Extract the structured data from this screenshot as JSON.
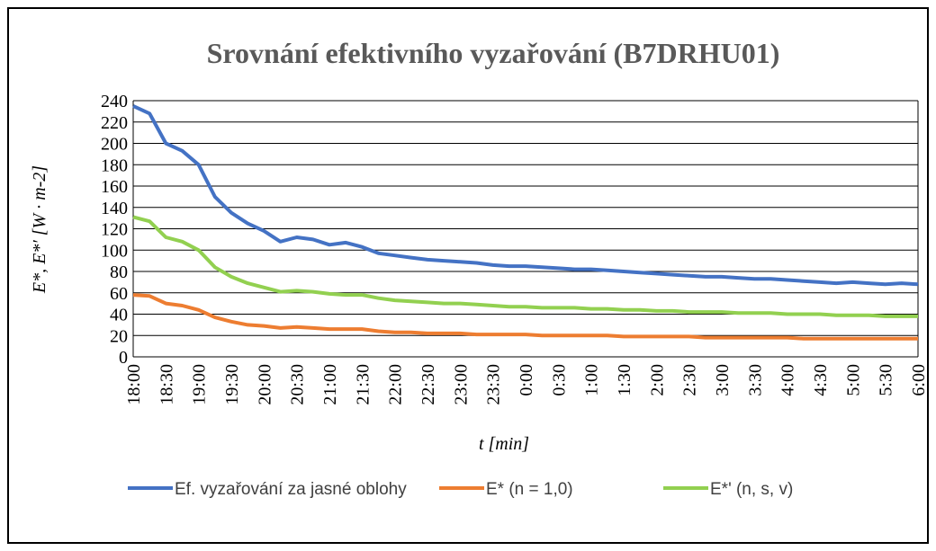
{
  "chart_data": {
    "type": "line",
    "title": "Srovnání efektivního vyzařování (B7DRHU01)",
    "x_label": "t [min]",
    "y_label": "E*, E*′ [W · m-2]",
    "categories": [
      "18:00",
      null,
      "18:30",
      null,
      "19:00",
      null,
      "19:30",
      null,
      "20:00",
      null,
      "20:30",
      null,
      "21:00",
      null,
      "21:30",
      null,
      "22:00",
      null,
      "22:30",
      null,
      "23:00",
      null,
      "23:30",
      null,
      "0:00",
      null,
      "0:30",
      null,
      "1:00",
      null,
      "1:30",
      null,
      "2:00",
      null,
      "2:30",
      null,
      "3:00",
      null,
      "3:30",
      null,
      "4:00",
      null,
      "4:30",
      null,
      "5:00",
      null,
      "5:30",
      null,
      "6:00"
    ],
    "series": [
      {
        "name": "Ef. vyzařování za jasné oblohy",
        "color": "#4472c4",
        "values": [
          235,
          228,
          200,
          193,
          180,
          150,
          135,
          125,
          118,
          108,
          112,
          110,
          105,
          107,
          103,
          97,
          95,
          93,
          91,
          90,
          89,
          88,
          86,
          85,
          85,
          84,
          83,
          82,
          82,
          81,
          80,
          79,
          78,
          77,
          76,
          75,
          75,
          74,
          73,
          73,
          72,
          71,
          70,
          69,
          70,
          69,
          68,
          69,
          68
        ]
      },
      {
        "name": "E* (n = 1,0)",
        "color": "#ed7d31",
        "values": [
          58,
          57,
          50,
          48,
          44,
          37,
          33,
          30,
          29,
          27,
          28,
          27,
          26,
          26,
          26,
          24,
          23,
          23,
          22,
          22,
          22,
          21,
          21,
          21,
          21,
          20,
          20,
          20,
          20,
          20,
          19,
          19,
          19,
          19,
          19,
          18,
          18,
          18,
          18,
          18,
          18,
          17,
          17,
          17,
          17,
          17,
          17,
          17,
          17
        ]
      },
      {
        "name": "E*' (n, s, v)",
        "color": "#92d050",
        "values": [
          131,
          127,
          112,
          108,
          100,
          84,
          75,
          69,
          65,
          61,
          62,
          61,
          59,
          58,
          58,
          55,
          53,
          52,
          51,
          50,
          50,
          49,
          48,
          47,
          47,
          46,
          46,
          46,
          45,
          45,
          44,
          44,
          43,
          43,
          42,
          42,
          42,
          41,
          41,
          41,
          40,
          40,
          40,
          39,
          39,
          39,
          38,
          38,
          38
        ]
      }
    ],
    "ylim": [
      0,
      240
    ],
    "yticks": [
      0,
      20,
      40,
      60,
      80,
      100,
      120,
      140,
      160,
      180,
      200,
      220,
      240
    ],
    "grid": true
  }
}
